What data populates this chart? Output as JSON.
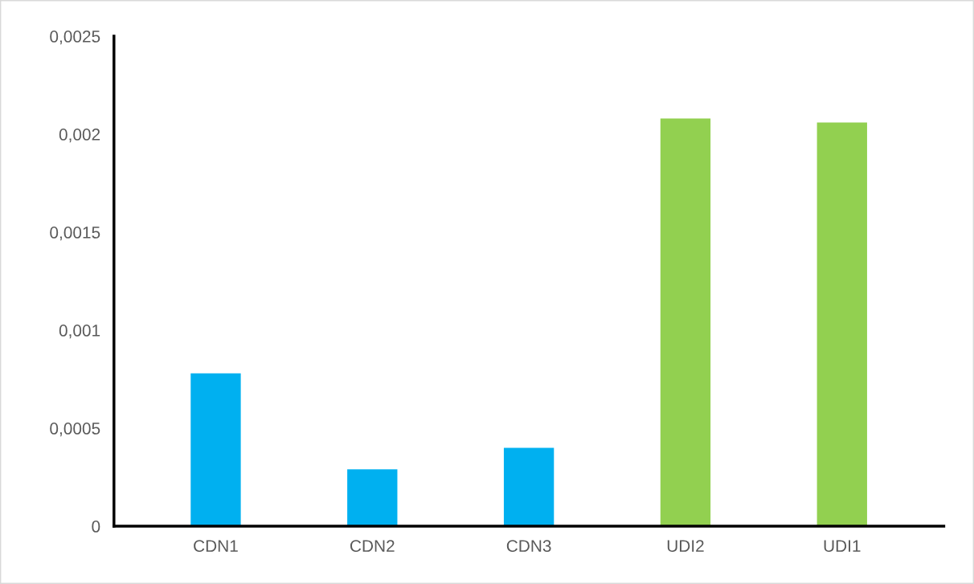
{
  "chart_data": {
    "type": "bar",
    "categories": [
      "CDN1",
      "CDN2",
      "CDN3",
      "UDI2",
      "UDI1"
    ],
    "values": [
      0.00078,
      0.00029,
      0.0004,
      0.00208,
      0.00206
    ],
    "colors": [
      "#00b0f0",
      "#00b0f0",
      "#00b0f0",
      "#92d050",
      "#92d050"
    ],
    "ylim": [
      0,
      0.0025
    ],
    "yticks": [
      {
        "value": 0,
        "label": "0"
      },
      {
        "value": 0.0005,
        "label": "0,0005"
      },
      {
        "value": 0.001,
        "label": "0,001"
      },
      {
        "value": 0.0015,
        "label": "0,0015"
      },
      {
        "value": 0.002,
        "label": "0,002"
      },
      {
        "value": 0.0025,
        "label": "0,0025"
      }
    ],
    "grid": false
  }
}
